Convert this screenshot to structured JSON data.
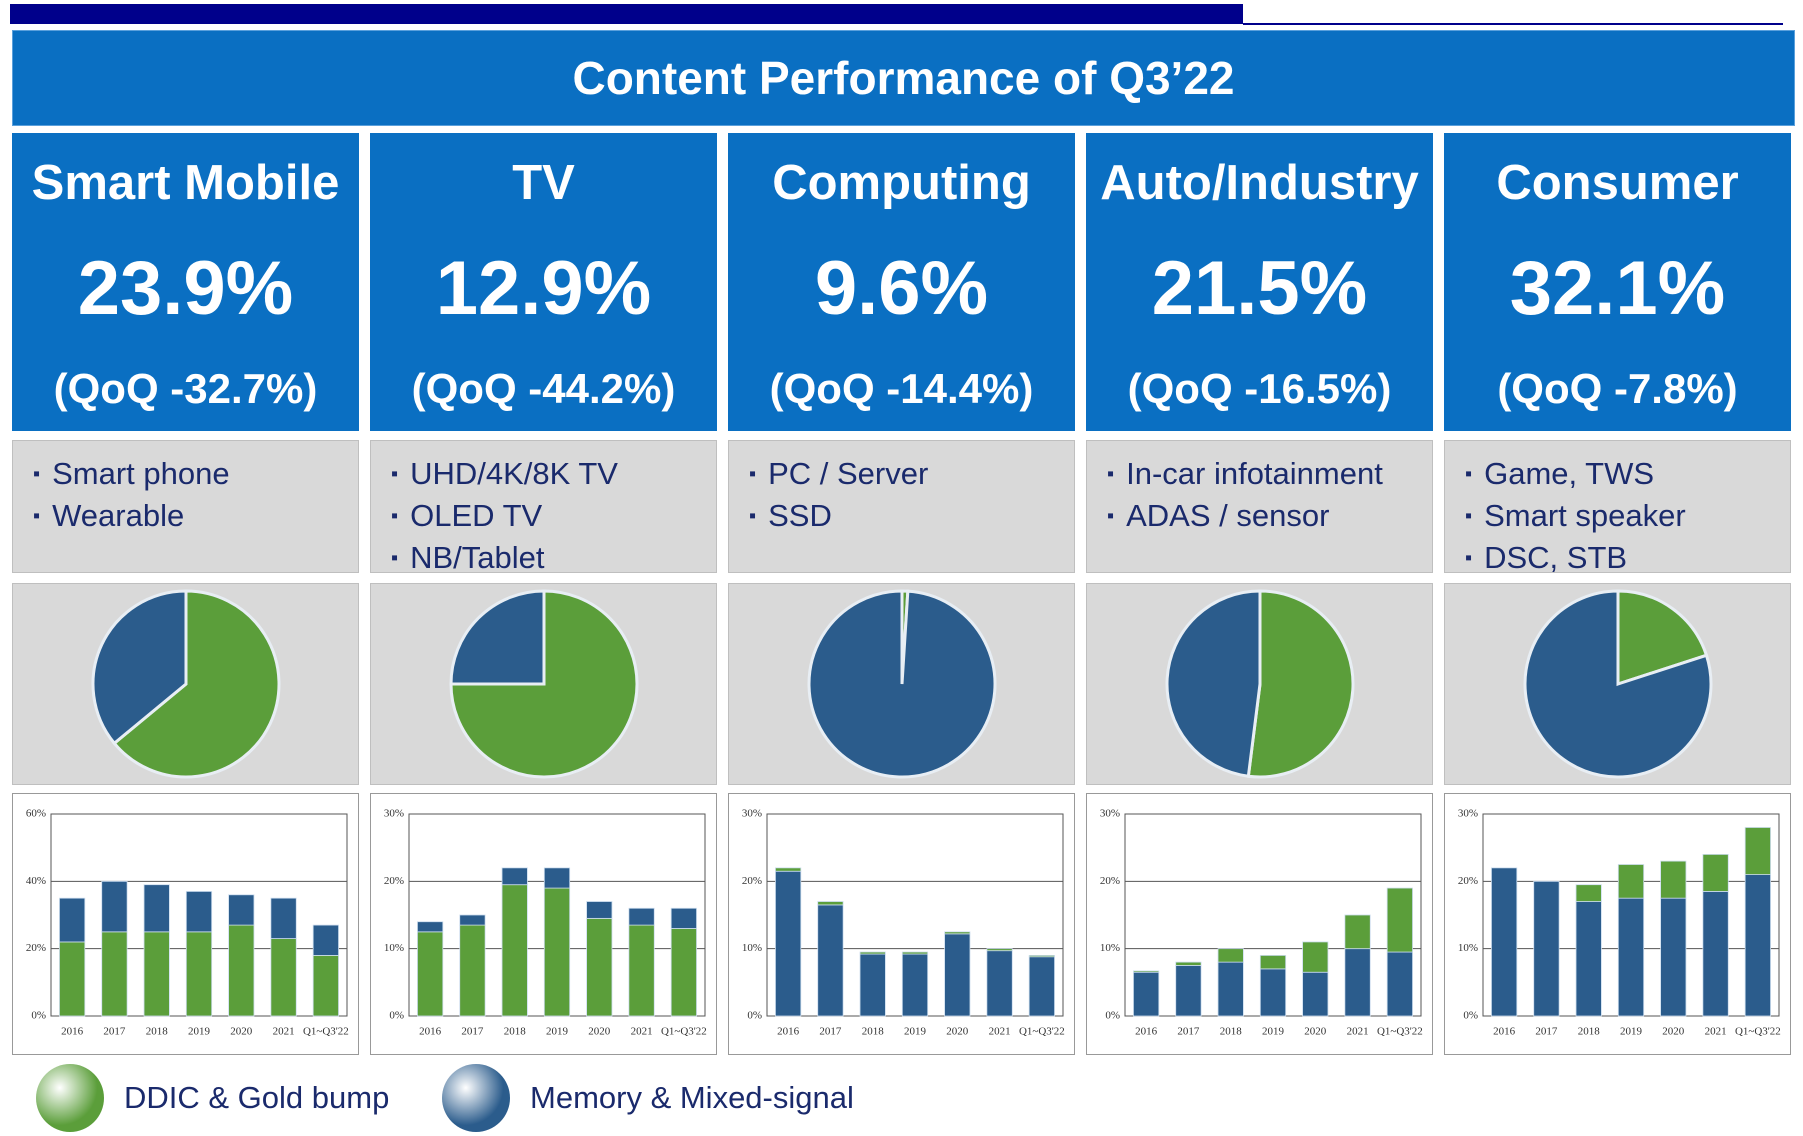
{
  "title": "Content Performance of Q3’22",
  "panels": [
    {
      "name": "Smart Mobile",
      "percent": "23.9%",
      "qoq": "(QoQ -32.7%)",
      "items": [
        "Smart phone",
        "Wearable"
      ]
    },
    {
      "name": "TV",
      "percent": "12.9%",
      "qoq": "(QoQ -44.2%)",
      "items": [
        "UHD/4K/8K TV",
        "OLED TV",
        "NB/Tablet"
      ]
    },
    {
      "name": "Computing",
      "percent": "9.6%",
      "qoq": "(QoQ -14.4%)",
      "items": [
        "PC / Server",
        "SSD"
      ]
    },
    {
      "name": "Auto/Industry",
      "percent": "21.5%",
      "qoq": "(QoQ -16.5%)",
      "items": [
        "In-car infotainment",
        "ADAS / sensor"
      ]
    },
    {
      "name": "Consumer",
      "percent": "32.1%",
      "qoq": "(QoQ -7.8%)",
      "items": [
        "Game, TWS",
        "Smart speaker",
        "DSC, STB"
      ]
    }
  ],
  "legend": [
    {
      "name": "DDIC & Gold bump",
      "color": "#5b9e3a"
    },
    {
      "name": "Memory & Mixed-signal",
      "color": "#2b5c8c"
    }
  ],
  "chart_data": [
    {
      "type": "pie",
      "values": [
        64,
        36
      ],
      "colors": [
        "#5b9e3a",
        "#2b5c8c"
      ]
    },
    {
      "type": "pie",
      "values": [
        75,
        25
      ],
      "colors": [
        "#5b9e3a",
        "#2b5c8c"
      ]
    },
    {
      "type": "pie",
      "values": [
        1,
        99
      ],
      "colors": [
        "#5b9e3a",
        "#2b5c8c"
      ]
    },
    {
      "type": "pie",
      "values": [
        52,
        48
      ],
      "colors": [
        "#5b9e3a",
        "#2b5c8c"
      ]
    },
    {
      "type": "pie",
      "values": [
        20,
        80
      ],
      "colors": [
        "#5b9e3a",
        "#2b5c8c"
      ]
    },
    {
      "type": "bar",
      "categories": [
        "2016",
        "2017",
        "2018",
        "2019",
        "2020",
        "2021",
        "Q1~Q3'22"
      ],
      "ylim": [
        0,
        60
      ],
      "yticks": [
        {
          "value": 0,
          "label": "0%"
        },
        {
          "value": 20,
          "label": "20%"
        },
        {
          "value": 40,
          "label": "40%"
        },
        {
          "value": 60,
          "label": "60%"
        }
      ],
      "grid": true,
      "series": [
        {
          "color": "#5b9e3a",
          "values": [
            22,
            25,
            25,
            25,
            27,
            23,
            18
          ]
        },
        {
          "color": "#2b5c8c",
          "values": [
            13,
            15,
            14,
            12,
            9,
            12,
            9
          ]
        }
      ]
    },
    {
      "type": "bar",
      "categories": [
        "2016",
        "2017",
        "2018",
        "2019",
        "2020",
        "2021",
        "Q1~Q3'22"
      ],
      "ylim": [
        0,
        30
      ],
      "yticks": [
        {
          "value": 0,
          "label": "0%"
        },
        {
          "value": 10,
          "label": "10%"
        },
        {
          "value": 20,
          "label": "20%"
        },
        {
          "value": 30,
          "label": "30%"
        }
      ],
      "grid": true,
      "series": [
        {
          "color": "#5b9e3a",
          "values": [
            12.5,
            13.5,
            19.5,
            19,
            14.5,
            13.5,
            13
          ]
        },
        {
          "color": "#2b5c8c",
          "values": [
            1.5,
            1.5,
            2.5,
            3,
            2.5,
            2.5,
            3
          ]
        }
      ]
    },
    {
      "type": "bar",
      "categories": [
        "2016",
        "2017",
        "2018",
        "2019",
        "2020",
        "2021",
        "Q1~Q3'22"
      ],
      "ylim": [
        0,
        30
      ],
      "yticks": [
        {
          "value": 0,
          "label": "0%"
        },
        {
          "value": 10,
          "label": "10%"
        },
        {
          "value": 20,
          "label": "20%"
        },
        {
          "value": 30,
          "label": "30%"
        }
      ],
      "grid": true,
      "series": [
        {
          "color": "#2b5c8c",
          "values": [
            21.5,
            16.5,
            9.2,
            9.2,
            12.2,
            9.7,
            8.8
          ]
        },
        {
          "color": "#5b9e3a",
          "values": [
            0.5,
            0.5,
            0.3,
            0.3,
            0.3,
            0.3,
            0.2
          ]
        }
      ]
    },
    {
      "type": "bar",
      "categories": [
        "2016",
        "2017",
        "2018",
        "2019",
        "2020",
        "2021",
        "Q1~Q3'22"
      ],
      "ylim": [
        0,
        30
      ],
      "yticks": [
        {
          "value": 0,
          "label": "0%"
        },
        {
          "value": 10,
          "label": "10%"
        },
        {
          "value": 20,
          "label": "20%"
        },
        {
          "value": 30,
          "label": "30%"
        }
      ],
      "grid": true,
      "series": [
        {
          "color": "#2b5c8c",
          "values": [
            6.5,
            7.5,
            8,
            7,
            6.5,
            10,
            9.5
          ]
        },
        {
          "color": "#5b9e3a",
          "values": [
            0.2,
            0.5,
            2,
            2,
            4.5,
            5,
            9.5
          ]
        }
      ]
    },
    {
      "type": "bar",
      "categories": [
        "2016",
        "2017",
        "2018",
        "2019",
        "2020",
        "2021",
        "Q1~Q3'22"
      ],
      "ylim": [
        0,
        30
      ],
      "yticks": [
        {
          "value": 0,
          "label": "0%"
        },
        {
          "value": 10,
          "label": "10%"
        },
        {
          "value": 20,
          "label": "20%"
        },
        {
          "value": 30,
          "label": "30%"
        }
      ],
      "grid": true,
      "series": [
        {
          "color": "#2b5c8c",
          "values": [
            22,
            20,
            17,
            17.5,
            17.5,
            18.5,
            21
          ]
        },
        {
          "color": "#5b9e3a",
          "values": [
            0,
            0,
            2.5,
            5,
            5.5,
            5.5,
            7
          ]
        }
      ]
    }
  ]
}
